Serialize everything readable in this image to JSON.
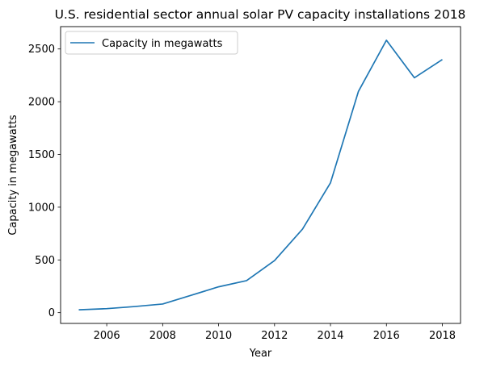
{
  "chart_data": {
    "type": "line",
    "title": "U.S. residential sector annual solar PV capacity installations 2018",
    "xlabel": "Year",
    "ylabel": "Capacity in megawatts",
    "x": [
      2005,
      2006,
      2007,
      2008,
      2009,
      2010,
      2011,
      2012,
      2013,
      2014,
      2015,
      2016,
      2017,
      2018
    ],
    "series": [
      {
        "name": "Capacity in megawatts",
        "color": "#1f77b4",
        "values": [
          27,
          38,
          58,
          82,
          163,
          245,
          304,
          494,
          792,
          1231,
          2098,
          2583,
          2227,
          2400
        ]
      }
    ],
    "xlim": [
      2004.35,
      2018.65
    ],
    "ylim": [
      -102,
      2712
    ],
    "xticks": [
      2006,
      2008,
      2010,
      2012,
      2014,
      2016,
      2018
    ],
    "yticks": [
      0,
      500,
      1000,
      1500,
      2000,
      2500
    ],
    "grid": false,
    "legend_position": "upper-left"
  }
}
